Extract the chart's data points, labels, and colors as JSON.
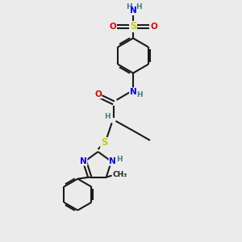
{
  "bg_color": "#ebebeb",
  "atom_colors": {
    "C": "#1a1a1a",
    "N": "#0000ee",
    "O": "#ee0000",
    "S": "#cccc00",
    "H": "#408080"
  },
  "bond_color": "#1a1a1a",
  "bond_width": 1.5,
  "figsize": [
    3.0,
    3.0
  ],
  "dpi": 100
}
